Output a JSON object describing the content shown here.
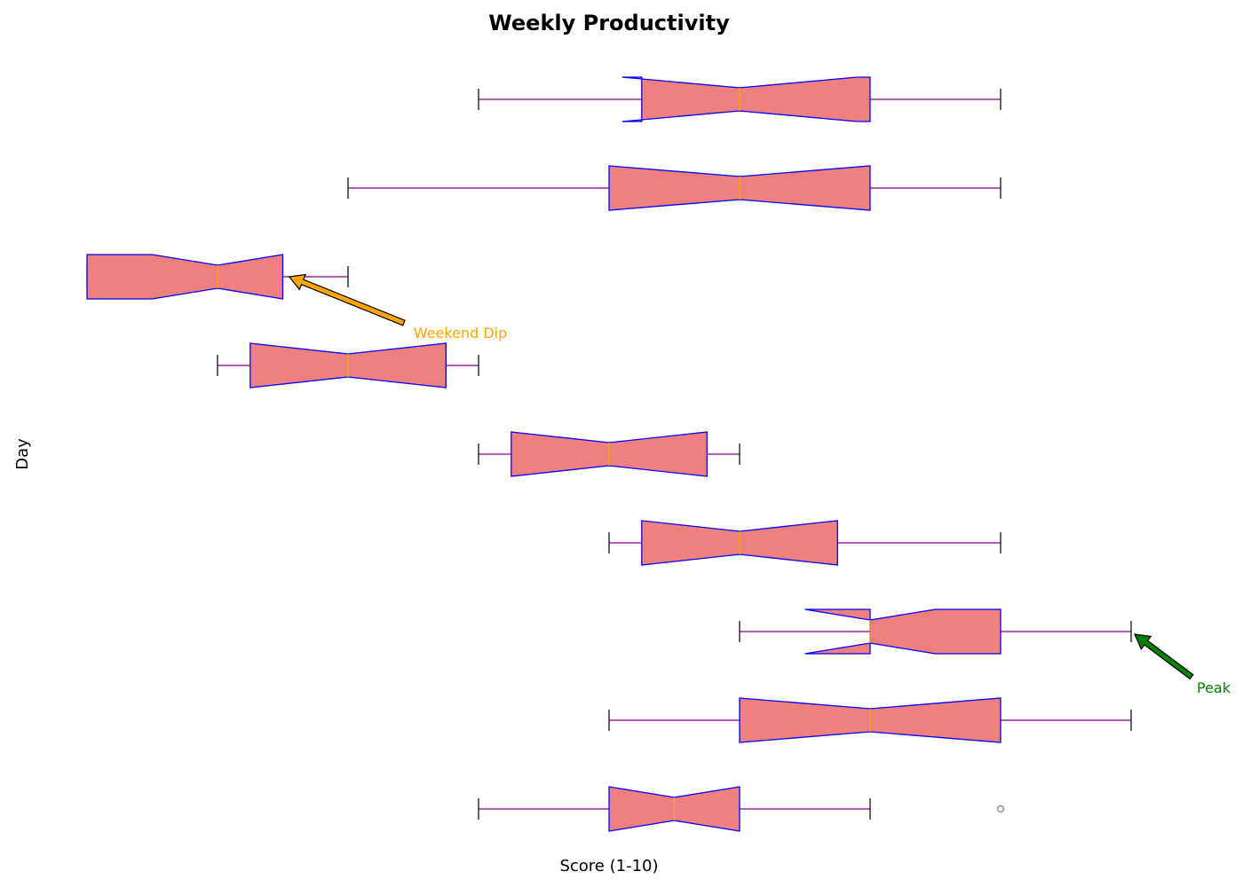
{
  "chart_data": {
    "type": "boxplot",
    "orientation": "horizontal",
    "notched": true,
    "title": "Weekly Productivity",
    "xlabel": "Score (1-10)",
    "ylabel": "Day",
    "axes_visible": false,
    "grid": false,
    "xlim": [
      1,
      9.8
    ],
    "colors": {
      "box_fill": "#f08080",
      "box_edge": "#0000ff",
      "median": "#ffa500",
      "whisker": "#800080",
      "cap": "#000000",
      "flier": "#808080"
    },
    "boxes": [
      {
        "whisker_low": 4,
        "q1": 5.25,
        "median": 6,
        "q3": 7,
        "whisker_high": 8,
        "notch_low": 5.1,
        "notch_high": 6.9
      },
      {
        "whisker_low": 3,
        "q1": 5,
        "median": 6,
        "q3": 7,
        "whisker_high": 8,
        "notch_low": 5,
        "notch_high": 7
      },
      {
        "whisker_low": 1,
        "q1": 1,
        "median": 2,
        "q3": 2.5,
        "whisker_high": 3,
        "notch_low": 1.5,
        "notch_high": 2.5
      },
      {
        "whisker_low": 2,
        "q1": 2.25,
        "median": 3,
        "q3": 3.75,
        "whisker_high": 4,
        "notch_low": 2.25,
        "notch_high": 3.75
      },
      {
        "whisker_low": 4,
        "q1": 4.25,
        "median": 5,
        "q3": 5.75,
        "whisker_high": 6,
        "notch_low": 4.25,
        "notch_high": 5.75
      },
      {
        "whisker_low": 5,
        "q1": 5.25,
        "median": 6,
        "q3": 6.75,
        "whisker_high": 8,
        "notch_low": 5.25,
        "notch_high": 6.75
      },
      {
        "whisker_low": 6,
        "q1": 7,
        "median": 7,
        "q3": 8,
        "whisker_high": 9,
        "notch_low": 6.5,
        "notch_high": 7.5
      },
      {
        "whisker_low": 5,
        "q1": 6,
        "median": 7,
        "q3": 8,
        "whisker_high": 9,
        "notch_low": 6,
        "notch_high": 8
      },
      {
        "whisker_low": 4,
        "q1": 5,
        "median": 5.5,
        "q3": 6,
        "whisker_high": 7,
        "notch_low": 5,
        "notch_high": 6,
        "outliers": [
          8
        ]
      }
    ],
    "annotations": [
      {
        "text": "Weekend Dip",
        "box_index": 2,
        "x": 2.55,
        "color": "#ffa500"
      },
      {
        "text": "Peak",
        "box_index": 6,
        "x": 9,
        "color": "#008000"
      }
    ]
  }
}
